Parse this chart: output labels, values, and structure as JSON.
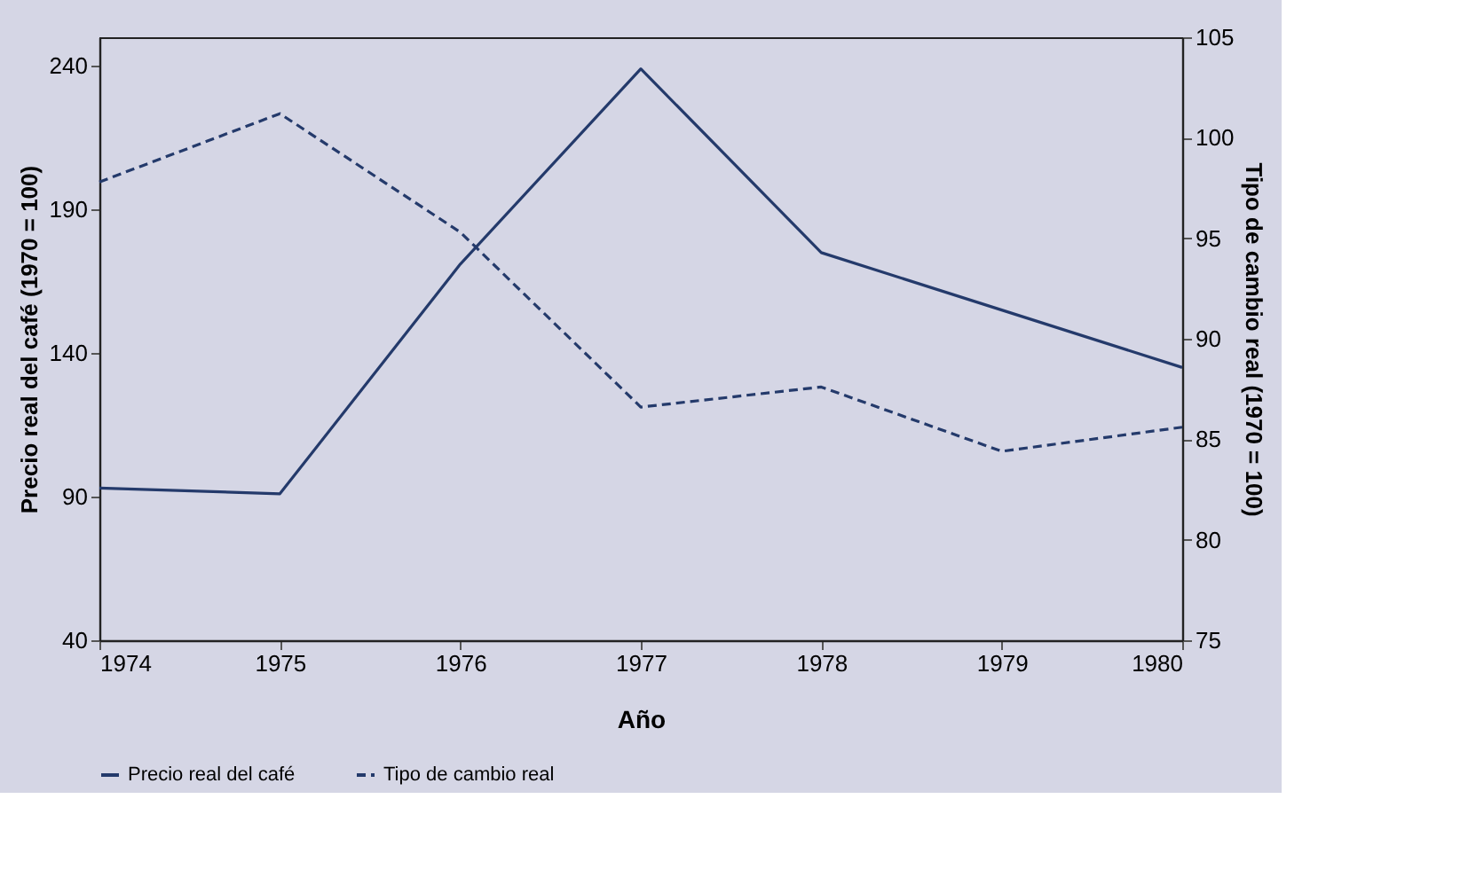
{
  "chart_data": {
    "type": "line",
    "xlabel": "Año",
    "ylabel": "Precio real del café (1970 = 100)",
    "y2label": "Tipo de cambio real (1970 = 100)",
    "x": [
      1974,
      1975,
      1976,
      1977,
      1978,
      1979,
      1980
    ],
    "series": [
      {
        "name": "Precio real del café",
        "color": "#243a6b",
        "line_style": "solid",
        "values": [
          93,
          91,
          171,
          239,
          175,
          155,
          135
        ]
      },
      {
        "name": "Tipo de cambio real",
        "color": "#243a6b",
        "line_style": "dashed",
        "axis": "y2",
        "values": [
          97.8,
          101.2,
          95.3,
          86.6,
          87.6,
          84.4,
          85.6
        ]
      }
    ],
    "xlim": [
      1974,
      1980
    ],
    "xticks": [
      1974,
      1975,
      1976,
      1977,
      1978,
      1979,
      1980
    ],
    "ylim": [
      40,
      250
    ],
    "yticks": [
      40,
      90,
      140,
      190,
      240
    ],
    "y2lim": [
      75,
      105
    ],
    "y2ticks": [
      75,
      80,
      85,
      90,
      95,
      100,
      105
    ],
    "grid": false,
    "legend": "bottom",
    "marker": "none"
  }
}
